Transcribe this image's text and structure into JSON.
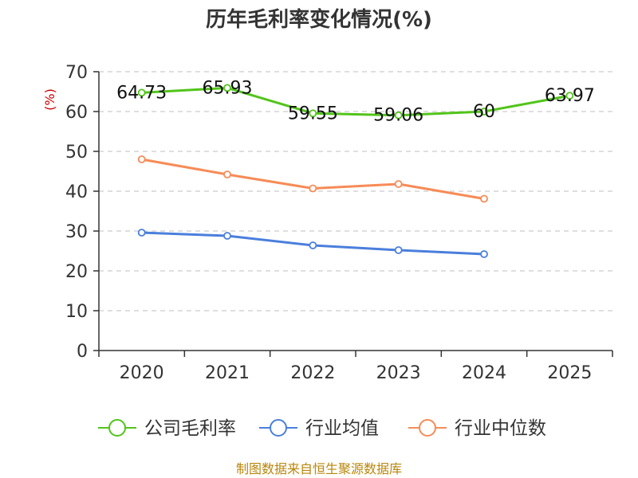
{
  "chart_data": {
    "type": "line",
    "title": "历年毛利率变化情况(%)",
    "ylabel": "(%)",
    "xlabel": "",
    "categories": [
      "2020",
      "2021",
      "2022",
      "2023",
      "2024",
      "2025"
    ],
    "ylim": [
      0,
      70
    ],
    "yticks": [
      0,
      10,
      20,
      30,
      40,
      50,
      60,
      70
    ],
    "grid": true,
    "legend_position": "bottom",
    "series": [
      {
        "name": "公司毛利率",
        "color": "#52c41a",
        "values": [
          64.73,
          65.93,
          59.55,
          59.06,
          60,
          63.97
        ],
        "labels": [
          "64.73",
          "65.93",
          "59.55",
          "59.06",
          "60",
          "63.97"
        ]
      },
      {
        "name": "行业均值",
        "color": "#4a7fdc",
        "values": [
          29.6,
          28.8,
          26.4,
          25.2,
          24.2,
          null
        ],
        "labels": null
      },
      {
        "name": "行业中位数",
        "color": "#f78b57",
        "values": [
          48.0,
          44.2,
          40.7,
          41.8,
          38.1,
          null
        ],
        "labels": null
      }
    ],
    "ylabel_color": "#cc0000",
    "source": "制图数据来自恒生聚源数据库",
    "source_color": "#b8860b"
  }
}
